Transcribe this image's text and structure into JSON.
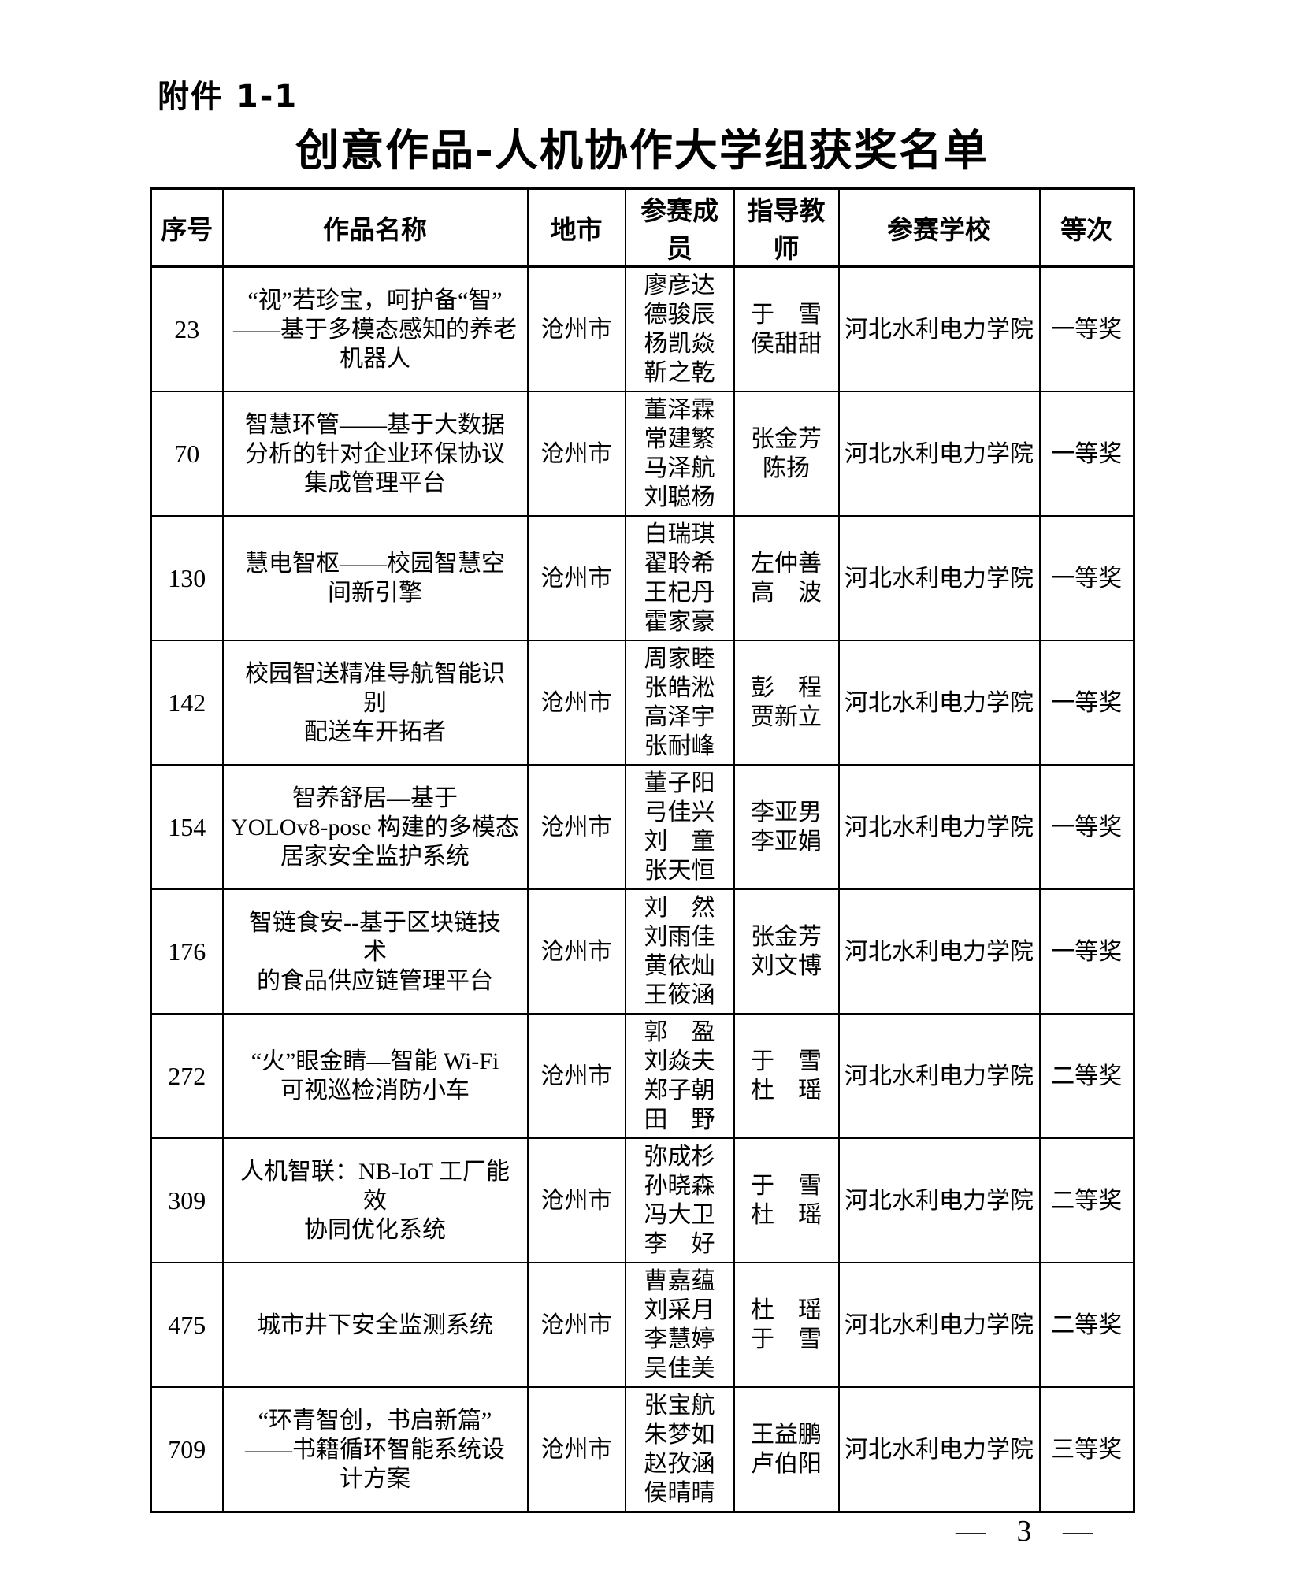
{
  "page": {
    "attachment_label": "附件 1-1",
    "title": "创意作品-人机协作大学组获奖名单",
    "page_number": "— 3 —"
  },
  "table": {
    "headers": [
      "序号",
      "作品名称",
      "地市",
      "参赛成员",
      "指导教师",
      "参赛学校",
      "等次"
    ],
    "rows": [
      {
        "no": "23",
        "work": "“视”若珍宝，呵护备“智”\n——基于多模态感知的养老\n机器人",
        "city": "沧州市",
        "members": [
          "廖彦达",
          "德骏辰",
          "杨凯焱",
          "靳之乾"
        ],
        "teachers": [
          "于　雪",
          "侯甜甜"
        ],
        "school": "河北水利电力学院",
        "award": "一等奖"
      },
      {
        "no": "70",
        "work": "智慧环管——基于大数据\n分析的针对企业环保协议\n集成管理平台",
        "city": "沧州市",
        "members": [
          "董泽霖",
          "常建繁",
          "马泽航",
          "刘聪杨"
        ],
        "teachers": [
          "张金芳",
          "陈扬"
        ],
        "school": "河北水利电力学院",
        "award": "一等奖"
      },
      {
        "no": "130",
        "work": "慧电智枢——校园智慧空\n间新引擎",
        "city": "沧州市",
        "members": [
          "白瑞琪",
          "翟聆希",
          "王杞丹",
          "霍家豪"
        ],
        "teachers": [
          "左仲善",
          "高　波"
        ],
        "school": "河北水利电力学院",
        "award": "一等奖"
      },
      {
        "no": "142",
        "work": "校园智送精准导航智能识\n别\n配送车开拓者",
        "city": "沧州市",
        "members": [
          "周家睦",
          "张皓淞",
          "高泽宇",
          "张耐峰"
        ],
        "teachers": [
          "彭　程",
          "贾新立"
        ],
        "school": "河北水利电力学院",
        "award": "一等奖"
      },
      {
        "no": "154",
        "work": "智养舒居—基于\nYOLOv8-pose 构建的多模态\n居家安全监护系统",
        "city": "沧州市",
        "members": [
          "董子阳",
          "弓佳兴",
          "刘　童",
          "张天恒"
        ],
        "teachers": [
          "李亚男",
          "李亚娟"
        ],
        "school": "河北水利电力学院",
        "award": "一等奖"
      },
      {
        "no": "176",
        "work": "智链食安--基于区块链技\n术\n的食品供应链管理平台",
        "city": "沧州市",
        "members": [
          "刘　然",
          "刘雨佳",
          "黄依灿",
          "王筱涵"
        ],
        "teachers": [
          "张金芳",
          "刘文博"
        ],
        "school": "河北水利电力学院",
        "award": "一等奖"
      },
      {
        "no": "272",
        "work": "“火”眼金睛—智能 Wi-Fi\n可视巡检消防小车",
        "city": "沧州市",
        "members": [
          "郭　盈",
          "刘焱夫",
          "郑子朝",
          "田　野"
        ],
        "teachers": [
          "于　雪",
          "杜　瑶"
        ],
        "school": "河北水利电力学院",
        "award": "二等奖"
      },
      {
        "no": "309",
        "work": "人机智联：NB-IoT 工厂能\n效\n协同优化系统",
        "city": "沧州市",
        "members": [
          "弥成杉",
          "孙晓森",
          "冯大卫",
          "李　好"
        ],
        "teachers": [
          "于　雪",
          "杜　瑶"
        ],
        "school": "河北水利电力学院",
        "award": "二等奖"
      },
      {
        "no": "475",
        "work": "城市井下安全监测系统",
        "city": "沧州市",
        "members": [
          "曹嘉蕴",
          "刘采月",
          "李慧婷",
          "吴佳美"
        ],
        "teachers": [
          "杜　瑶",
          "于　雪"
        ],
        "school": "河北水利电力学院",
        "award": "二等奖"
      },
      {
        "no": "709",
        "work": "“环青智创，书启新篇”\n——书籍循环智能系统设\n计方案",
        "city": "沧州市",
        "members": [
          "张宝航",
          "朱梦如",
          "赵孜涵",
          "侯晴晴"
        ],
        "teachers": [
          "王益鹏",
          "卢伯阳"
        ],
        "school": "河北水利电力学院",
        "award": "三等奖"
      }
    ]
  }
}
